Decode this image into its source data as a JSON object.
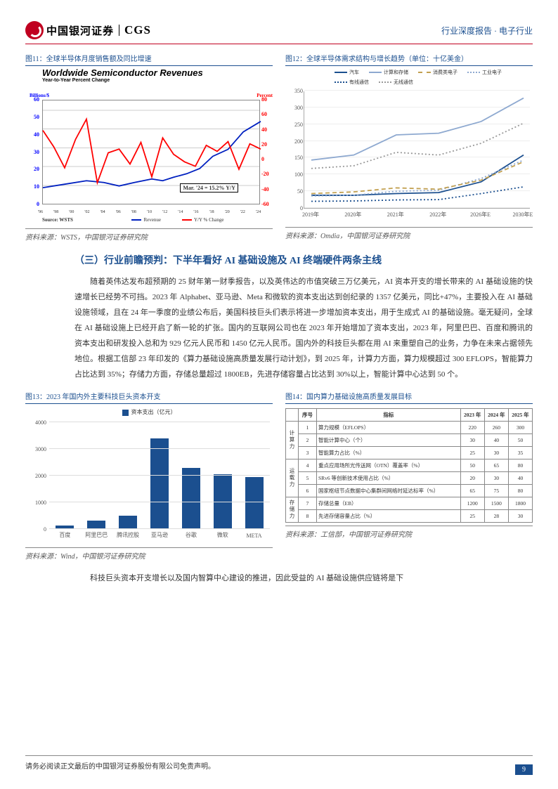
{
  "header": {
    "logo_cn": "中国银河证券",
    "logo_en": "CGS",
    "right": "行业深度报告 · 电子行业"
  },
  "fig11": {
    "caption": "图11：全球半导体月度销售额及同比增速",
    "title": "Worldwide Semiconductor Revenues",
    "subtitle": "Year-to-Year Percent Change",
    "y_left_label": "Billions/$",
    "y_right_label": "Percent",
    "y_left_ticks": [
      0,
      10,
      20,
      30,
      40,
      50,
      60
    ],
    "y_right_ticks": [
      -60,
      -40,
      -20,
      0,
      20,
      40,
      60,
      80
    ],
    "x_ticks": [
      "'96",
      "'98",
      "'00",
      "'02",
      "'04",
      "'06",
      "'08",
      "'10",
      "'12",
      "'14",
      "'16",
      "'18",
      "'20",
      "'22",
      "'24"
    ],
    "legend": [
      "Revenue",
      "Y/Y % Change"
    ],
    "annot": "Mar. '24 = 15.2% Y/Y",
    "wsts": "Source: WSTS",
    "src": "资料来源：WSTS，中国银河证券研究院",
    "blue_pts": [
      [
        0,
        10
      ],
      [
        10,
        12
      ],
      [
        20,
        14
      ],
      [
        28,
        13
      ],
      [
        35,
        11
      ],
      [
        42,
        13
      ],
      [
        50,
        15
      ],
      [
        55,
        14
      ],
      [
        60,
        16
      ],
      [
        66,
        18
      ],
      [
        72,
        21
      ],
      [
        78,
        28
      ],
      [
        85,
        32
      ],
      [
        92,
        42
      ],
      [
        100,
        48
      ]
    ],
    "red_pts": [
      [
        0,
        40
      ],
      [
        5,
        18
      ],
      [
        10,
        -10
      ],
      [
        15,
        28
      ],
      [
        20,
        55
      ],
      [
        25,
        -30
      ],
      [
        30,
        10
      ],
      [
        35,
        15
      ],
      [
        40,
        -5
      ],
      [
        45,
        24
      ],
      [
        50,
        -22
      ],
      [
        55,
        30
      ],
      [
        60,
        8
      ],
      [
        65,
        -2
      ],
      [
        70,
        -8
      ],
      [
        75,
        20
      ],
      [
        80,
        12
      ],
      [
        85,
        25
      ],
      [
        90,
        -12
      ],
      [
        95,
        22
      ],
      [
        100,
        15
      ]
    ]
  },
  "fig12": {
    "caption": "图12：全球半导体需求结构与增长趋势（单位：十亿美金）",
    "y_ticks": [
      0,
      50,
      100,
      150,
      200,
      250,
      300,
      350
    ],
    "x_labels": [
      "2019年",
      "2020年",
      "2021年",
      "2022年",
      "2026年E",
      "2030年E"
    ],
    "legend": [
      {
        "name": "汽车",
        "color": "#1b4f8f",
        "dash": "0"
      },
      {
        "name": "计算和存储",
        "color": "#8ea9d0",
        "dash": "0"
      },
      {
        "name": "消费类电子",
        "color": "#c2a050",
        "dash": "6 4"
      },
      {
        "name": "工业电子",
        "color": "#8ea9d0",
        "dash": "2 3"
      },
      {
        "name": "有线通信",
        "color": "#1b4f8f",
        "dash": "2 3"
      },
      {
        "name": "无线通信",
        "color": "#999",
        "dash": "2 3"
      }
    ],
    "series": {
      "auto": [
        40,
        40,
        45,
        48,
        80,
        160
      ],
      "compute": [
        145,
        160,
        220,
        225,
        260,
        330
      ],
      "consumer": [
        45,
        50,
        62,
        58,
        85,
        140
      ],
      "indust": [
        38,
        40,
        52,
        55,
        90,
        145
      ],
      "wired": [
        22,
        23,
        26,
        27,
        45,
        65
      ],
      "wireless": [
        120,
        128,
        168,
        160,
        195,
        255
      ]
    },
    "src": "资料来源：Omdia，中国银河证券研究院"
  },
  "section": {
    "title": "（三）行业前瞻预判：下半年看好 AI 基础设施及 AI 终端硬件两条主线",
    "body": "随着英伟达发布超预期的 25 财年第一财季报告，以及英伟达的市值突破三万亿美元，AI 资本开支的增长带来的 AI 基础设施的快速增长已经势不可挡。2023 年 Alphabet、亚马逊、Meta 和微软的资本支出达到创纪录的 1357 亿美元，同比+47%，主要投入在 AI 基础设施领域，且在 24 年一季度的业绩公布后，美国科技巨头们表示将进一步增加资本支出，用于生成式 AI 的基础设施。毫无疑问，全球在 AI 基础设施上已经开启了新一轮的扩张。国内的互联网公司也在 2023 年开始增加了资本支出，2023 年，阿里巴巴、百度和腾讯的资本支出和研发投入总和为 929 亿元人民币和 1450 亿元人民币。国内外的科技巨头都在用 AI 来重塑自己的业务，力争在未来占据领先地位。根据工信部 23 年印发的《算力基础设施高质量发展行动计划》，到 2025 年，计算力方面，算力规模超过 300 EFLOPS，智能算力占比达到 35%；存储力方面，存储总量超过 1800EB，先进存储容量占比达到 30%以上，智能计算中心达到 50 个。"
  },
  "fig13": {
    "caption": "图13：2023 年国内外主要科技巨头资本开支",
    "legend": "资本支出（亿元）",
    "y_ticks": [
      0,
      1000,
      2000,
      3000,
      4000
    ],
    "bars": [
      {
        "name": "百度",
        "val": 120
      },
      {
        "name": "阿里巴巴",
        "val": 320
      },
      {
        "name": "腾讯控股",
        "val": 500
      },
      {
        "name": "亚马逊",
        "val": 3400
      },
      {
        "name": "谷歌",
        "val": 2300
      },
      {
        "name": "微软",
        "val": 2050
      },
      {
        "name": "META",
        "val": 1950
      }
    ],
    "src": "资料来源：Wind，中国银河证券研究院"
  },
  "fig14": {
    "caption": "图14：国内算力基础设施高质量发展目标",
    "headers": [
      "",
      "序号",
      "指标",
      "2023 年",
      "2024 年",
      "2025 年"
    ],
    "groups": [
      {
        "label": "计算力",
        "rows": [
          [
            "1",
            "算力规模（EFLOPS）",
            "220",
            "260",
            "300"
          ],
          [
            "2",
            "智能计算中心（个）",
            "30",
            "40",
            "50"
          ],
          [
            "3",
            "智能算力占比（%）",
            "25",
            "30",
            "35"
          ]
        ]
      },
      {
        "label": "运载力",
        "rows": [
          [
            "4",
            "重点应用场所光传送网（OTN）覆盖率（%）",
            "50",
            "65",
            "80"
          ],
          [
            "5",
            "SRv6 等创新技术使用占比（%）",
            "20",
            "30",
            "40"
          ],
          [
            "6",
            "国家枢纽节点数据中心集群间网络时延达标率（%）",
            "65",
            "75",
            "80"
          ]
        ]
      },
      {
        "label": "存储力",
        "rows": [
          [
            "7",
            "存储总量（EB）",
            "1200",
            "1500",
            "1800"
          ],
          [
            "8",
            "先进存储容量占比（%）",
            "25",
            "28",
            "30"
          ]
        ]
      }
    ],
    "src": "资料来源：工信部，中国银河证券研究院"
  },
  "body2": "科技巨头资本开支增长以及国内智算中心建设的推进，因此受益的 AI 基础设施供应链将是下",
  "footer": {
    "disclaimer": "请务必阅读正文最后的中国银河证券股份有限公司免责声明。",
    "page": "9"
  }
}
